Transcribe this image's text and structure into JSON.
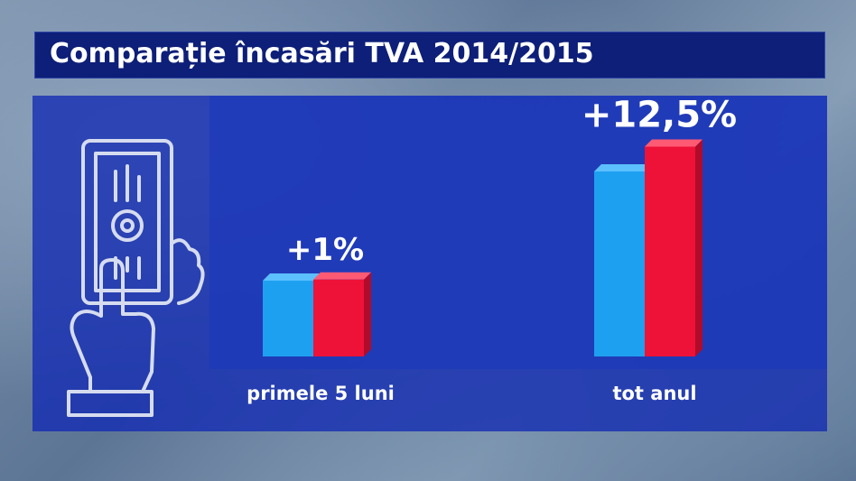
{
  "title": "Comparație încasări TVA 2014/2015",
  "icon": "hand-holding-banknote-icon",
  "colors": {
    "series_2014": "#1ea0f0",
    "series_2015": "#ee1238",
    "title_bg": "#0d1f78",
    "panel_bg": "#1a33b5"
  },
  "chart_data": {
    "type": "bar",
    "title": "Comparație încasări TVA 2014/2015",
    "categories": [
      "primele 5 luni",
      "tot anul"
    ],
    "series": [
      {
        "values": [
          100,
          100
        ]
      },
      {
        "values": [
          101,
          112.5
        ]
      }
    ],
    "data_labels": [
      "+1%",
      "+12,5%"
    ],
    "grid": false,
    "legend": "none"
  }
}
